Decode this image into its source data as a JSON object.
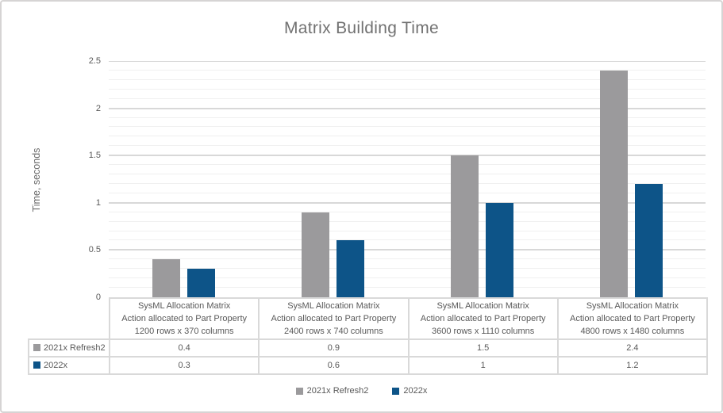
{
  "title": "Matrix Building Time",
  "y_axis": {
    "label": "Time, seconds",
    "tick_labels": [
      "0",
      "0.5",
      "1",
      "1.5",
      "2",
      "2.5"
    ]
  },
  "chart_data": {
    "type": "bar",
    "title": "Matrix Building Time",
    "xlabel": "",
    "ylabel": "Time, seconds",
    "ylim": [
      0,
      2.5
    ],
    "major_unit": 0.5,
    "minor_unit": 0.1,
    "grid": "horizontal major and minor gridlines",
    "legend_position": "bottom",
    "data_table_shown": true,
    "categories": [
      "SysML Allocation Matrix Action allocated to Part Property 1200 rows x 370 columns",
      "SysML Allocation Matrix Action allocated to Part Property 2400 rows x 740 columns",
      "SysML Allocation Matrix Action allocated to Part Property 3600 rows x 1110 columns",
      "SysML Allocation Matrix Action allocated to Part Property 4800 rows x 1480 columns"
    ],
    "category_lines": [
      [
        "SysML Allocation Matrix",
        "Action allocated to Part Property",
        "1200 rows x 370 columns"
      ],
      [
        "SysML Allocation Matrix",
        "Action allocated to Part Property",
        "2400 rows x 740 columns"
      ],
      [
        "SysML Allocation Matrix",
        "Action allocated to Part Property",
        "3600 rows x 1110 columns"
      ],
      [
        "SysML Allocation Matrix",
        "Action allocated to Part Property",
        "4800 rows x 1480 columns"
      ]
    ],
    "series": [
      {
        "name": "2021x Refresh2",
        "color": "#9B9A9C",
        "values": [
          0.4,
          0.9,
          1.5,
          2.4
        ],
        "display_values": [
          "0.4",
          "0.9",
          "1.5",
          "2.4"
        ]
      },
      {
        "name": "2022x",
        "color": "#0D5488",
        "values": [
          0.3,
          0.6,
          1,
          1.2
        ],
        "display_values": [
          "0.3",
          "0.6",
          "1",
          "1.2"
        ]
      }
    ]
  },
  "colors": {
    "chart_border": "#D6D4D4",
    "major_gridline": "#D8D8D8",
    "minor_gridline": "#F0F0F0",
    "table_border": "#D9D9D9",
    "text": "#595959",
    "title_text": "#717171"
  }
}
